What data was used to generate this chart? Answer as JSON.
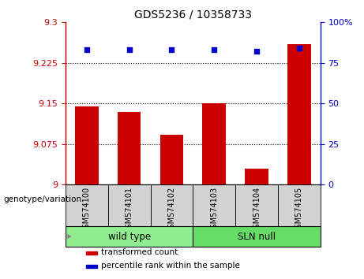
{
  "title": "GDS5236 / 10358733",
  "samples": [
    "GSM574100",
    "GSM574101",
    "GSM574102",
    "GSM574103",
    "GSM574104",
    "GSM574105"
  ],
  "bar_values": [
    9.145,
    9.135,
    9.092,
    9.15,
    9.03,
    9.26
  ],
  "percentile_values": [
    83,
    83,
    83,
    83,
    82,
    84
  ],
  "bar_color": "#cc0000",
  "percentile_color": "#0000cc",
  "ylim_left": [
    9.0,
    9.3
  ],
  "ylim_right": [
    0,
    100
  ],
  "yticks_left": [
    9.0,
    9.075,
    9.15,
    9.225,
    9.3
  ],
  "ytick_labels_left": [
    "9",
    "9.075",
    "9.15",
    "9.225",
    "9.3"
  ],
  "yticks_right": [
    0,
    25,
    50,
    75,
    100
  ],
  "ytick_labels_right": [
    "0",
    "25",
    "50",
    "75",
    "100%"
  ],
  "grid_lines": [
    9.075,
    9.15,
    9.225
  ],
  "legend_items": [
    {
      "label": "transformed count",
      "color": "#cc0000"
    },
    {
      "label": "percentile rank within the sample",
      "color": "#0000cc"
    }
  ],
  "left_axis_color": "#cc0000",
  "right_axis_color": "#0000cc",
  "background_color": "#ffffff",
  "plot_bg_color": "#ffffff",
  "tick_area_color": "#d3d3d3",
  "group1_color": "#90ee90",
  "group2_color": "#66dd66",
  "bar_width": 0.55,
  "genotype_label": "genotype/variation",
  "group1_label": "wild type",
  "group2_label": "SLN null"
}
